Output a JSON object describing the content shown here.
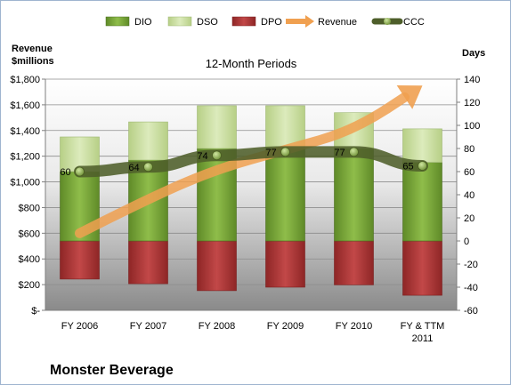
{
  "chart_data": {
    "type": "bar",
    "title": "12-Month Periods",
    "company": "Monster Beverage",
    "categories": [
      "FY 2006",
      "FY 2007",
      "FY 2008",
      "FY 2009",
      "FY 2010",
      "FY & TTM 2011"
    ],
    "left_axis": {
      "label_line1": "Revenue",
      "label_line2": "$millions",
      "range": [
        0,
        1800
      ],
      "step": 200,
      "tick_labels": [
        "$-",
        "$200",
        "$400",
        "$600",
        "$800",
        "$1,000",
        "$1,200",
        "$1,400",
        "$1,600",
        "$1,800"
      ]
    },
    "right_axis": {
      "label": "Days",
      "range": [
        -60,
        140
      ],
      "step": 20,
      "tick_labels": [
        "-60",
        "-40",
        "-20",
        "0",
        "20",
        "40",
        "60",
        "80",
        "100",
        "120",
        "140"
      ]
    },
    "legend": [
      "DIO",
      "DSO",
      "DPO",
      "Revenue",
      "CCC"
    ],
    "series": [
      {
        "name": "DIO",
        "axis": "right",
        "values": [
          60,
          70,
          80,
          80,
          80,
          68
        ]
      },
      {
        "name": "DSO",
        "axis": "right",
        "values": [
          30,
          33,
          37,
          37,
          31,
          29
        ]
      },
      {
        "name": "DPO",
        "axis": "right",
        "values": [
          -33,
          -37,
          -43,
          -40,
          -38,
          -47
        ]
      },
      {
        "name": "Revenue",
        "axis": "left",
        "values": [
          600,
          870,
          1100,
          1250,
          1400,
          1750
        ]
      },
      {
        "name": "CCC",
        "axis": "right",
        "values": [
          60,
          64,
          74,
          77,
          77,
          65
        ]
      }
    ],
    "data_labels": [
      "60",
      "64",
      "74",
      "77",
      "77",
      "65"
    ],
    "colors": {
      "DIO": "#7aa23a",
      "DSO": "#c8dca0",
      "DPO": "#b23a3a",
      "Revenue": "#f0a050",
      "CCC": "#4e5e2a"
    }
  }
}
